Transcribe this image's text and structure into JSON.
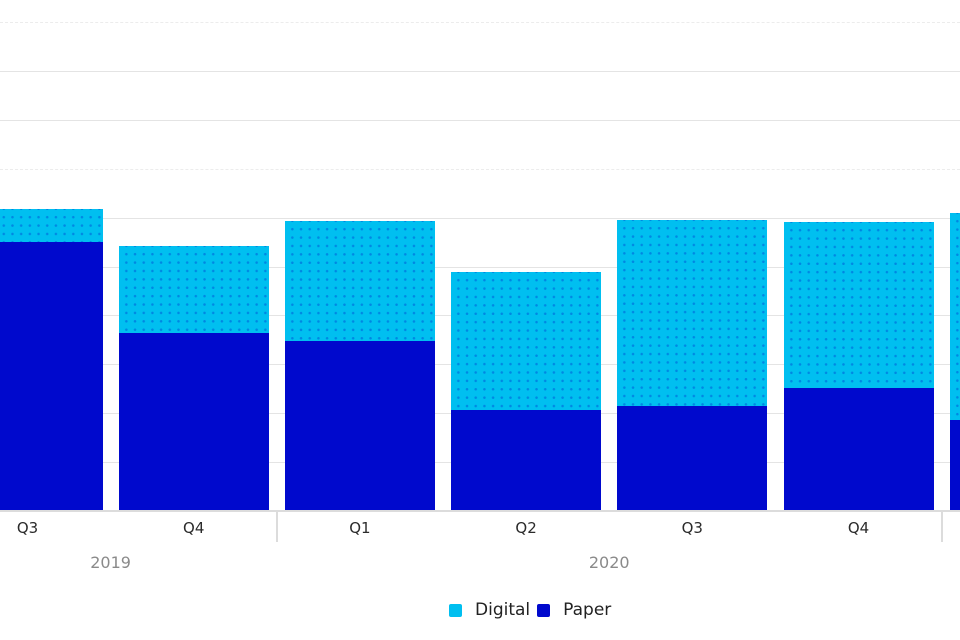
{
  "chart_data": {
    "type": "bar",
    "stacked": true,
    "title": "",
    "xlabel": "",
    "ylabel": "",
    "categories": [
      "Q3",
      "Q4",
      "Q1",
      "Q2",
      "Q3",
      "Q4",
      ""
    ],
    "series": [
      {
        "name": "Digital",
        "color": "#00bff0",
        "fill_pattern": "dots",
        "values": [
          6.8,
          17.8,
          24.6,
          28.2,
          38.1,
          34.0,
          42.4
        ]
      },
      {
        "name": "Paper",
        "color": "#0009cd",
        "fill_pattern": "solid",
        "values": [
          55.0,
          36.4,
          34.8,
          20.7,
          21.5,
          25.2,
          18.6
        ]
      }
    ],
    "year_groups": [
      {
        "label": "2019",
        "first_quarter_index": 0,
        "last_quarter_index": 1
      },
      {
        "label": "2020",
        "first_quarter_index": 2,
        "last_quarter_index": 5
      }
    ],
    "ylim": [
      0,
      100
    ],
    "gridline_interval": 10,
    "grid": true,
    "legend_position": "bottom",
    "first_bar_clipped_left": true,
    "last_bar_clipped_right": true
  },
  "legend": {
    "digital_label": "Digital",
    "paper_label": "Paper"
  }
}
